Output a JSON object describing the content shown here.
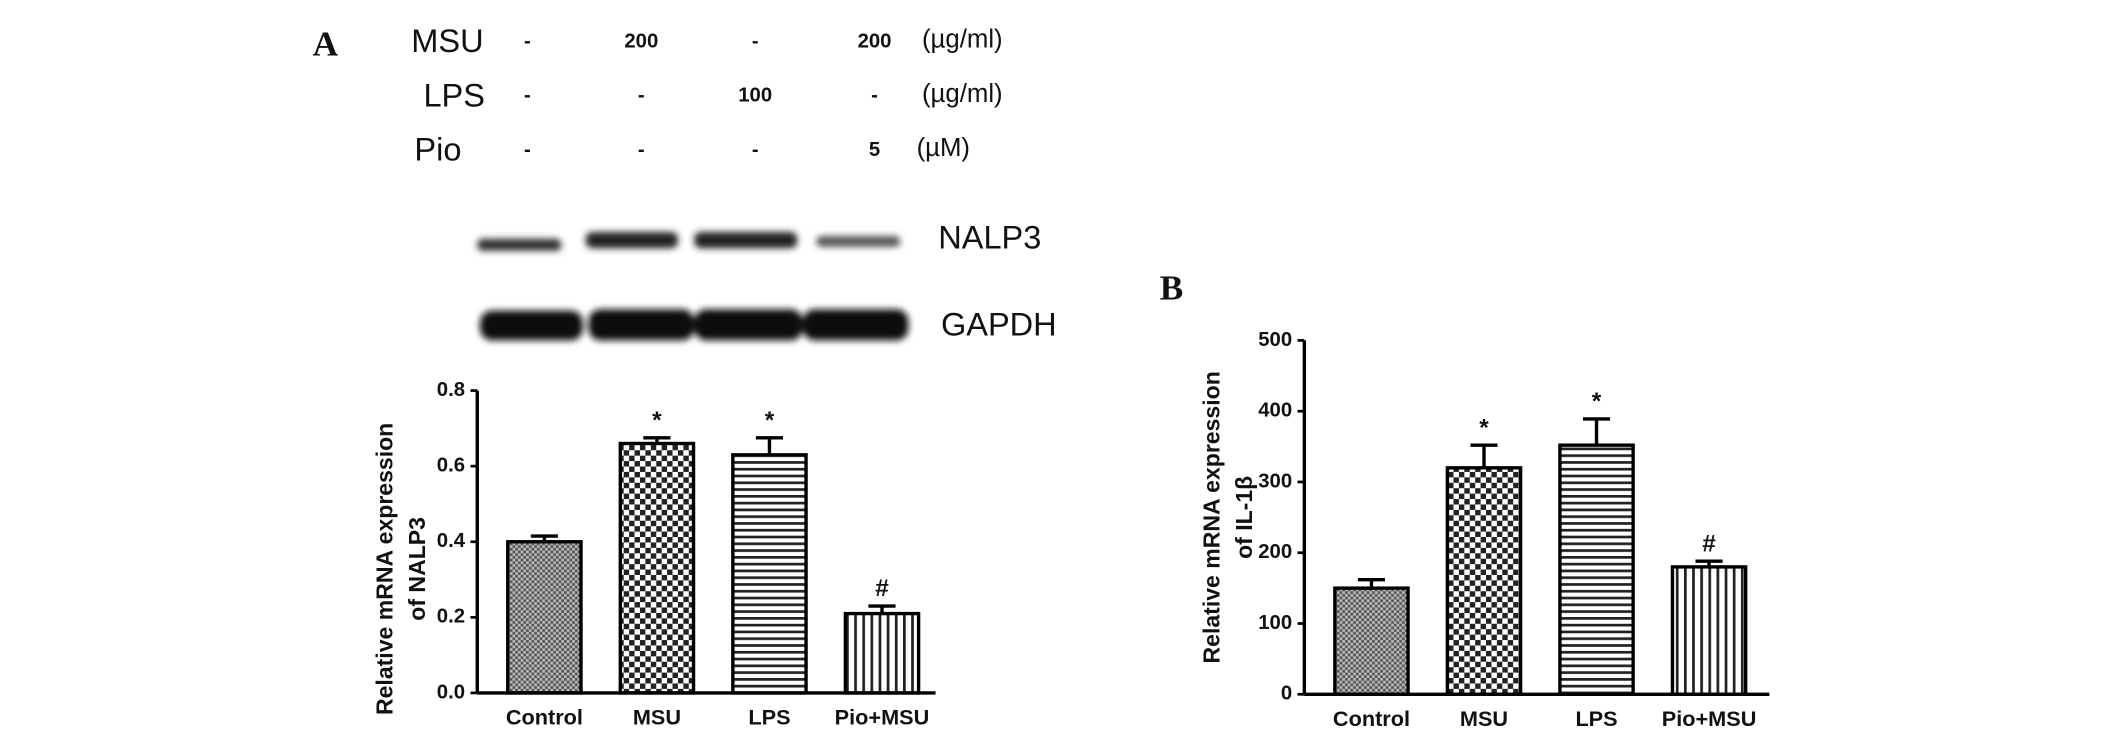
{
  "panel_labels": [
    "A",
    "B"
  ],
  "treatments": [
    {
      "name": "MSU",
      "doses": [
        "-",
        "200",
        "-",
        "200"
      ],
      "unit": "(µg/ml)"
    },
    {
      "name": "LPS",
      "doses": [
        "-",
        "-",
        "100",
        "-"
      ],
      "unit": "(µg/ml)"
    },
    {
      "name": "Pio",
      "doses": [
        "-",
        "-",
        "-",
        "5"
      ],
      "unit": "(µM)"
    }
  ],
  "blot_labels": [
    "NALP3",
    "GAPDH"
  ],
  "chart_data": [
    {
      "type": "bar",
      "y_label": [
        "Relative mRNA expression",
        "of NALP3"
      ],
      "categories": [
        "Control",
        "MSU",
        "LPS",
        "Pio+MSU"
      ],
      "values": [
        0.4,
        0.66,
        0.63,
        0.21
      ],
      "errors": [
        0.015,
        0.015,
        0.045,
        0.02
      ],
      "annotations": [
        null,
        "*",
        "*",
        "#"
      ],
      "color": "#000000",
      "ylim": [
        0,
        0.8
      ],
      "yticks": [
        {
          "value": 0,
          "label": "0.0"
        },
        0.2,
        0.4,
        0.6,
        0.8
      ]
    },
    {
      "type": "bar",
      "y_label": [
        "Relative mRNA expression",
        "of IL-1β"
      ],
      "categories": [
        "Control",
        "MSU",
        "LPS",
        "Pio+MSU"
      ],
      "values": [
        150,
        320,
        352,
        180
      ],
      "errors": [
        12,
        32,
        37,
        8
      ],
      "annotations": [
        null,
        "*",
        "*",
        "#"
      ],
      "color": "#000000",
      "ylim": [
        0,
        500
      ],
      "yticks": [
        0,
        100,
        200,
        300,
        400,
        500
      ]
    }
  ]
}
